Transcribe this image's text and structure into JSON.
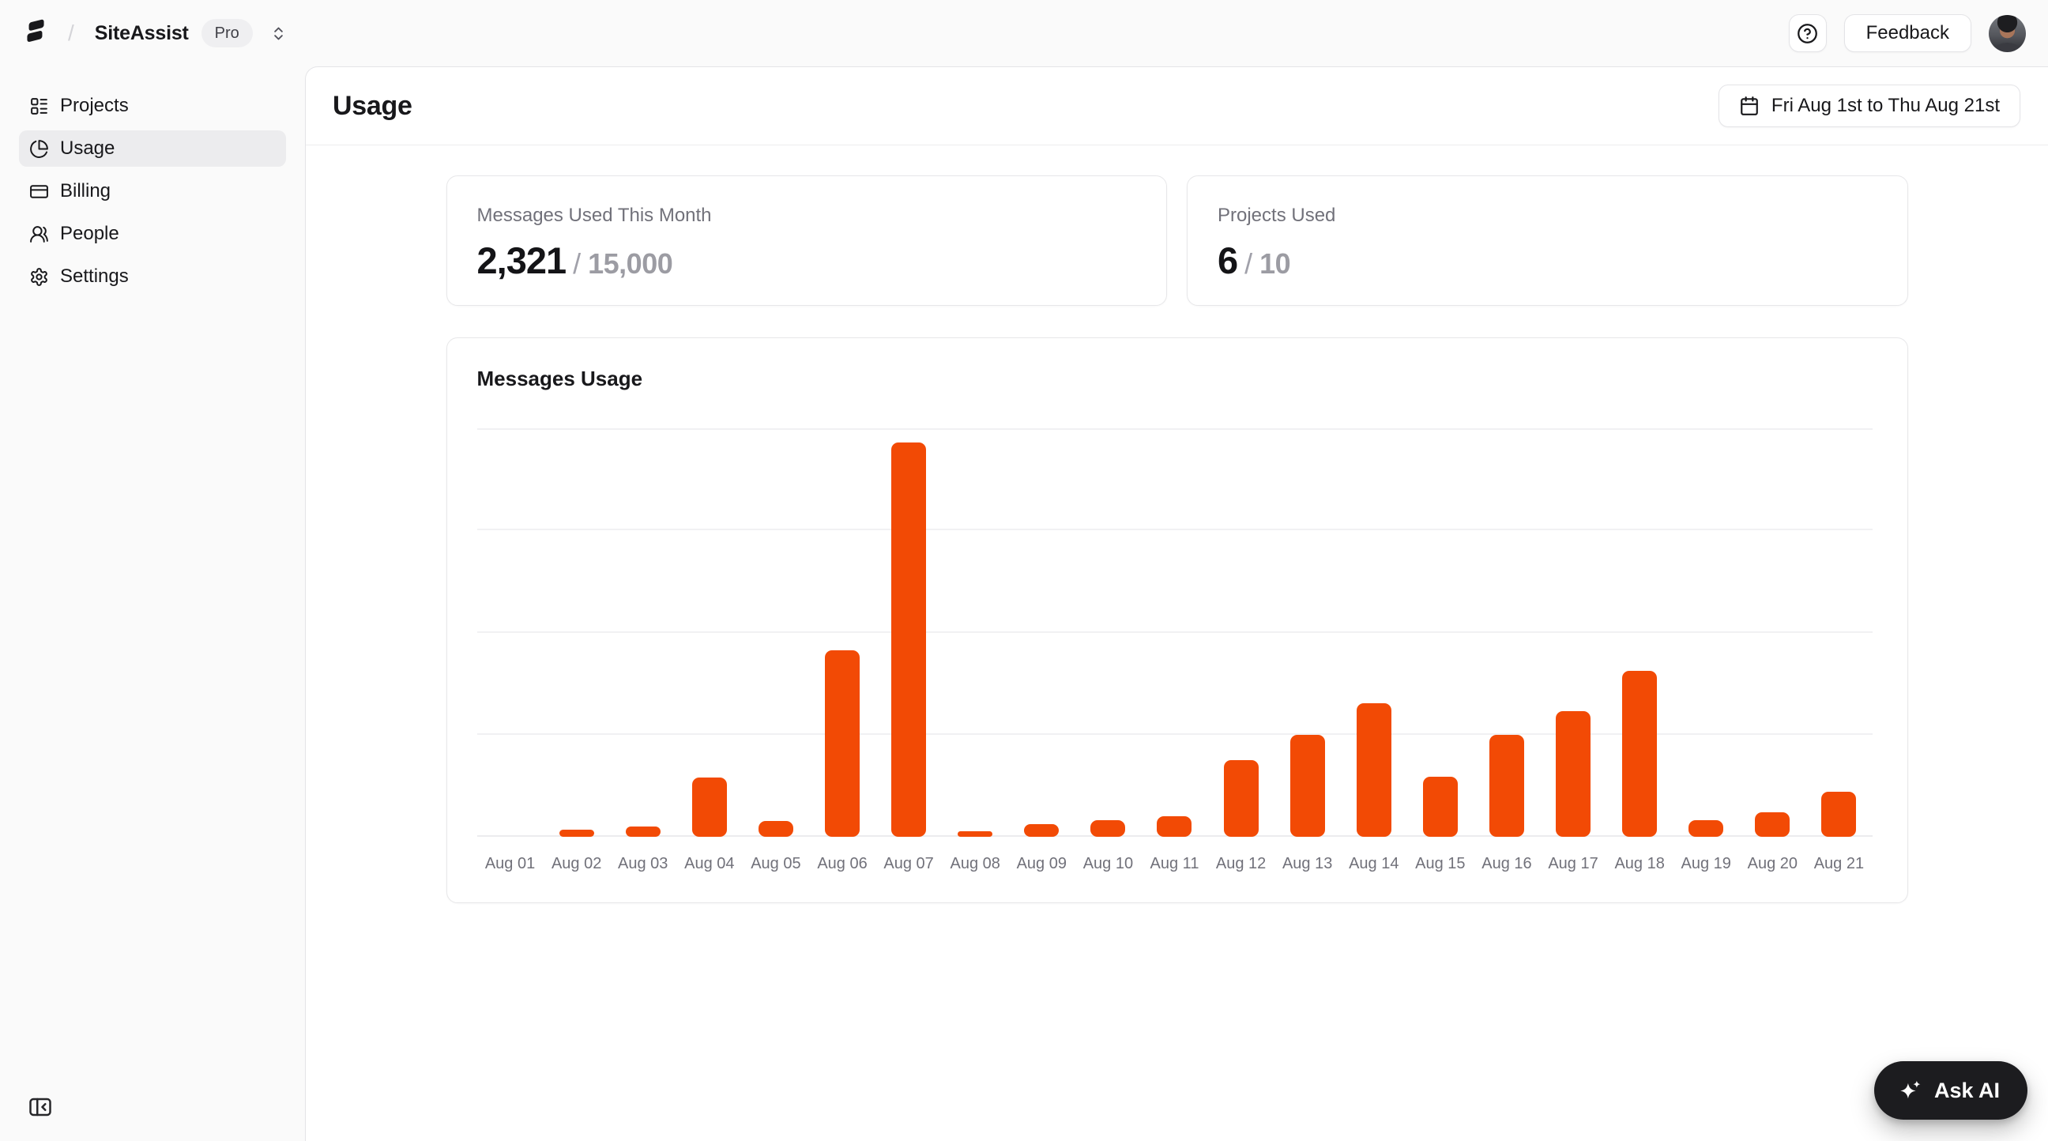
{
  "colors": {
    "accent": "#F24A05",
    "frame_bg": "#FAFAFA",
    "panel_bg": "#FFFFFF",
    "panel_border": "#E4E4E7",
    "grid_line": "#F1F1F3",
    "text_primary": "#18181B",
    "text_muted": "#71717A",
    "value_muted": "#A1A1AA"
  },
  "topbar": {
    "breadcrumb_separator": "/",
    "workspace_name": "SiteAssist",
    "plan_badge": "Pro",
    "feedback_label": "Feedback"
  },
  "sidebar": {
    "items": [
      {
        "id": "projects",
        "label": "Projects",
        "icon": "projects",
        "active": false
      },
      {
        "id": "usage",
        "label": "Usage",
        "icon": "usage",
        "active": true
      },
      {
        "id": "billing",
        "label": "Billing",
        "icon": "billing",
        "active": false
      },
      {
        "id": "people",
        "label": "People",
        "icon": "people",
        "active": false
      },
      {
        "id": "settings",
        "label": "Settings",
        "icon": "settings",
        "active": false
      }
    ]
  },
  "page": {
    "title": "Usage",
    "date_range_label": "Fri Aug 1st to Thu Aug 21st"
  },
  "stats": {
    "messages": {
      "label": "Messages Used This Month",
      "value": "2,321",
      "separator": "/",
      "limit": "15,000"
    },
    "projects": {
      "label": "Projects Used",
      "value": "6",
      "separator": "/",
      "limit": "10"
    }
  },
  "chart_data": {
    "type": "bar",
    "title": "Messages Usage",
    "categories": [
      "Aug 01",
      "Aug 02",
      "Aug 03",
      "Aug 04",
      "Aug 05",
      "Aug 06",
      "Aug 07",
      "Aug 08",
      "Aug 09",
      "Aug 10",
      "Aug 11",
      "Aug 12",
      "Aug 13",
      "Aug 14",
      "Aug 15",
      "Aug 16",
      "Aug 17",
      "Aug 18",
      "Aug 19",
      "Aug 20",
      "Aug 21"
    ],
    "values": [
      0,
      10,
      15,
      87,
      23,
      274,
      579,
      8,
      19,
      24,
      30,
      113,
      150,
      196,
      88,
      150,
      185,
      244,
      24,
      36,
      66
    ],
    "xlabel": "",
    "ylabel": "",
    "ylim": [
      0,
      600
    ],
    "gridline_interval": 150,
    "gridlines": "horizontal",
    "y_tick_labels_shown": false,
    "legend": false,
    "bar_color": "#F24A05"
  },
  "ask_ai_label": "Ask AI"
}
